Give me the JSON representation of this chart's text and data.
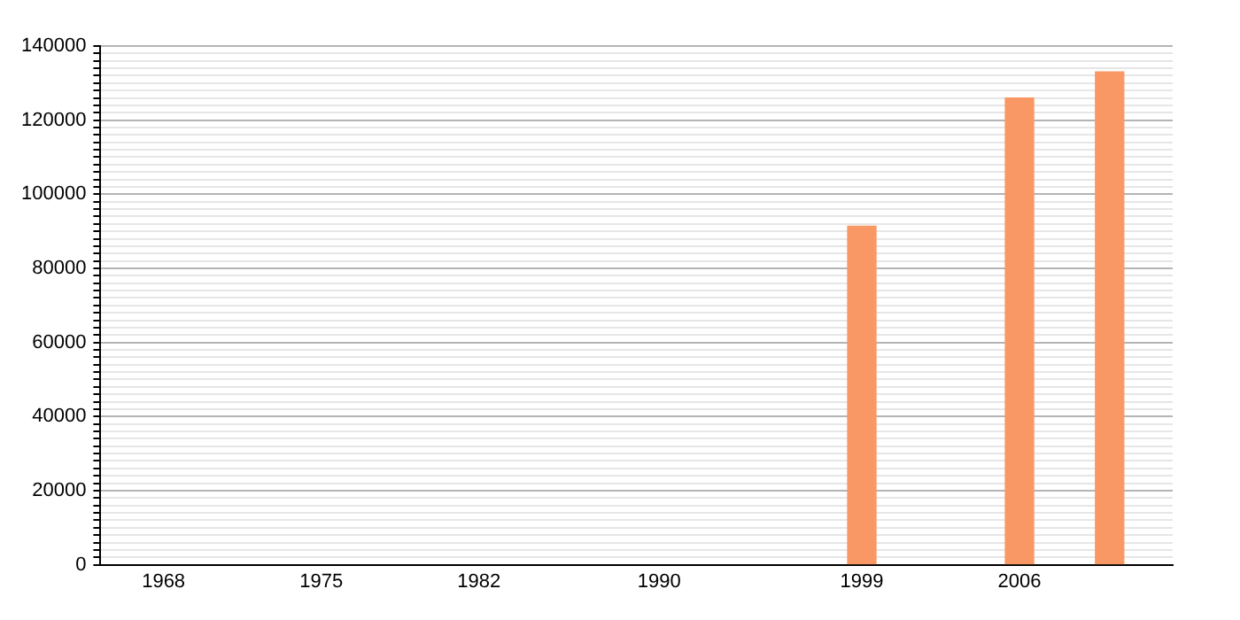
{
  "chart_data": {
    "type": "bar",
    "x": [
      1999,
      2006,
      2010
    ],
    "values": [
      91400,
      126000,
      133000
    ],
    "color": "#fa9865",
    "xlim": [
      1965.2,
      2012.8
    ],
    "xticks": [
      1968,
      1975,
      1982,
      1990,
      1999,
      2006
    ],
    "ylim": [
      0,
      140000
    ],
    "yticks": [
      0,
      {
        "value": 2000,
        "label": null
      },
      {
        "value": 4000,
        "label": null
      },
      {
        "value": 6000,
        "label": null
      },
      {
        "value": 8000,
        "label": null
      },
      {
        "value": 10000,
        "label": null
      },
      {
        "value": 12000,
        "label": null
      },
      {
        "value": 14000,
        "label": null
      },
      {
        "value": 16000,
        "label": null
      },
      {
        "value": 18000,
        "label": null
      },
      20000,
      {
        "value": 22000,
        "label": null
      },
      {
        "value": 24000,
        "label": null
      },
      {
        "value": 26000,
        "label": null
      },
      {
        "value": 28000,
        "label": null
      },
      {
        "value": 30000,
        "label": null
      },
      {
        "value": 32000,
        "label": null
      },
      {
        "value": 34000,
        "label": null
      },
      {
        "value": 36000,
        "label": null
      },
      {
        "value": 38000,
        "label": null
      },
      40000,
      {
        "value": 42000,
        "label": null
      },
      {
        "value": 44000,
        "label": null
      },
      {
        "value": 46000,
        "label": null
      },
      {
        "value": 48000,
        "label": null
      },
      {
        "value": 50000,
        "label": null
      },
      {
        "value": 52000,
        "label": null
      },
      {
        "value": 54000,
        "label": null
      },
      {
        "value": 56000,
        "label": null
      },
      {
        "value": 58000,
        "label": null
      },
      60000,
      {
        "value": 62000,
        "label": null
      },
      {
        "value": 64000,
        "label": null
      },
      {
        "value": 66000,
        "label": null
      },
      {
        "value": 68000,
        "label": null
      },
      {
        "value": 70000,
        "label": null
      },
      {
        "value": 72000,
        "label": null
      },
      {
        "value": 74000,
        "label": null
      },
      {
        "value": 76000,
        "label": null
      },
      {
        "value": 78000,
        "label": null
      },
      80000,
      {
        "value": 82000,
        "label": null
      },
      {
        "value": 84000,
        "label": null
      },
      {
        "value": 86000,
        "label": null
      },
      {
        "value": 88000,
        "label": null
      },
      {
        "value": 90000,
        "label": null
      },
      {
        "value": 92000,
        "label": null
      },
      {
        "value": 94000,
        "label": null
      },
      {
        "value": 96000,
        "label": null
      },
      {
        "value": 98000,
        "label": null
      },
      100000,
      {
        "value": 102000,
        "label": null
      },
      {
        "value": 104000,
        "label": null
      },
      {
        "value": 106000,
        "label": null
      },
      {
        "value": 108000,
        "label": null
      },
      {
        "value": 110000,
        "label": null
      },
      {
        "value": 112000,
        "label": null
      },
      {
        "value": 114000,
        "label": null
      },
      {
        "value": 116000,
        "label": null
      },
      {
        "value": 118000,
        "label": null
      },
      120000,
      {
        "value": 122000,
        "label": null
      },
      {
        "value": 124000,
        "label": null
      },
      {
        "value": 126000,
        "label": null
      },
      {
        "value": 128000,
        "label": null
      },
      {
        "value": 130000,
        "label": null
      },
      {
        "value": 132000,
        "label": null
      },
      {
        "value": 134000,
        "label": null
      },
      {
        "value": 136000,
        "label": null
      },
      {
        "value": 138000,
        "label": null
      },
      140000
    ],
    "grid": "y"
  }
}
